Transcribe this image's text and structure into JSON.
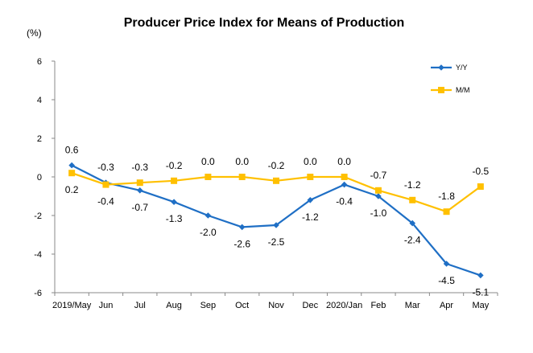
{
  "chart_data": {
    "type": "line",
    "title": "Producer Price Index for Means of Production",
    "ylabel": "(%)",
    "xlabel": "",
    "ylim": [
      -6,
      6
    ],
    "yticks": [
      6,
      4,
      2,
      0,
      -2,
      -4,
      -6
    ],
    "categories": [
      "2019/May",
      "Jun",
      "Jul",
      "Aug",
      "Sep",
      "Oct",
      "Nov",
      "Dec",
      "2020/Jan",
      "Feb",
      "Mar",
      "Apr",
      "May"
    ],
    "legend_position": "top-right",
    "grid": false,
    "series": [
      {
        "name": "Y/Y",
        "color": "#1f6fc5",
        "marker": "diamond",
        "values": [
          0.6,
          -0.3,
          -0.7,
          -1.3,
          -2.0,
          -2.6,
          -2.5,
          -1.2,
          -0.4,
          -1.0,
          -2.4,
          -4.5,
          -5.1
        ],
        "labels": [
          "0.6",
          "-0.3",
          "-0.7",
          "-1.3",
          "-2.0",
          "-2.6",
          "-2.5",
          "-1.2",
          "-0.4",
          "-1.0",
          "-2.4",
          "-4.5",
          "-5.1"
        ]
      },
      {
        "name": "M/M",
        "color": "#ffc000",
        "marker": "square",
        "values": [
          0.2,
          -0.4,
          -0.3,
          -0.2,
          0.0,
          0.0,
          -0.2,
          0.0,
          0.0,
          -0.7,
          -1.2,
          -1.8,
          -0.5
        ],
        "labels": [
          "0.2",
          "-0.4",
          "-0.3",
          "-0.2",
          "0.0",
          "0.0",
          "-0.2",
          "0.0",
          "0.0",
          "-0.7",
          "-1.2",
          "-1.8",
          "-0.5"
        ]
      }
    ]
  }
}
